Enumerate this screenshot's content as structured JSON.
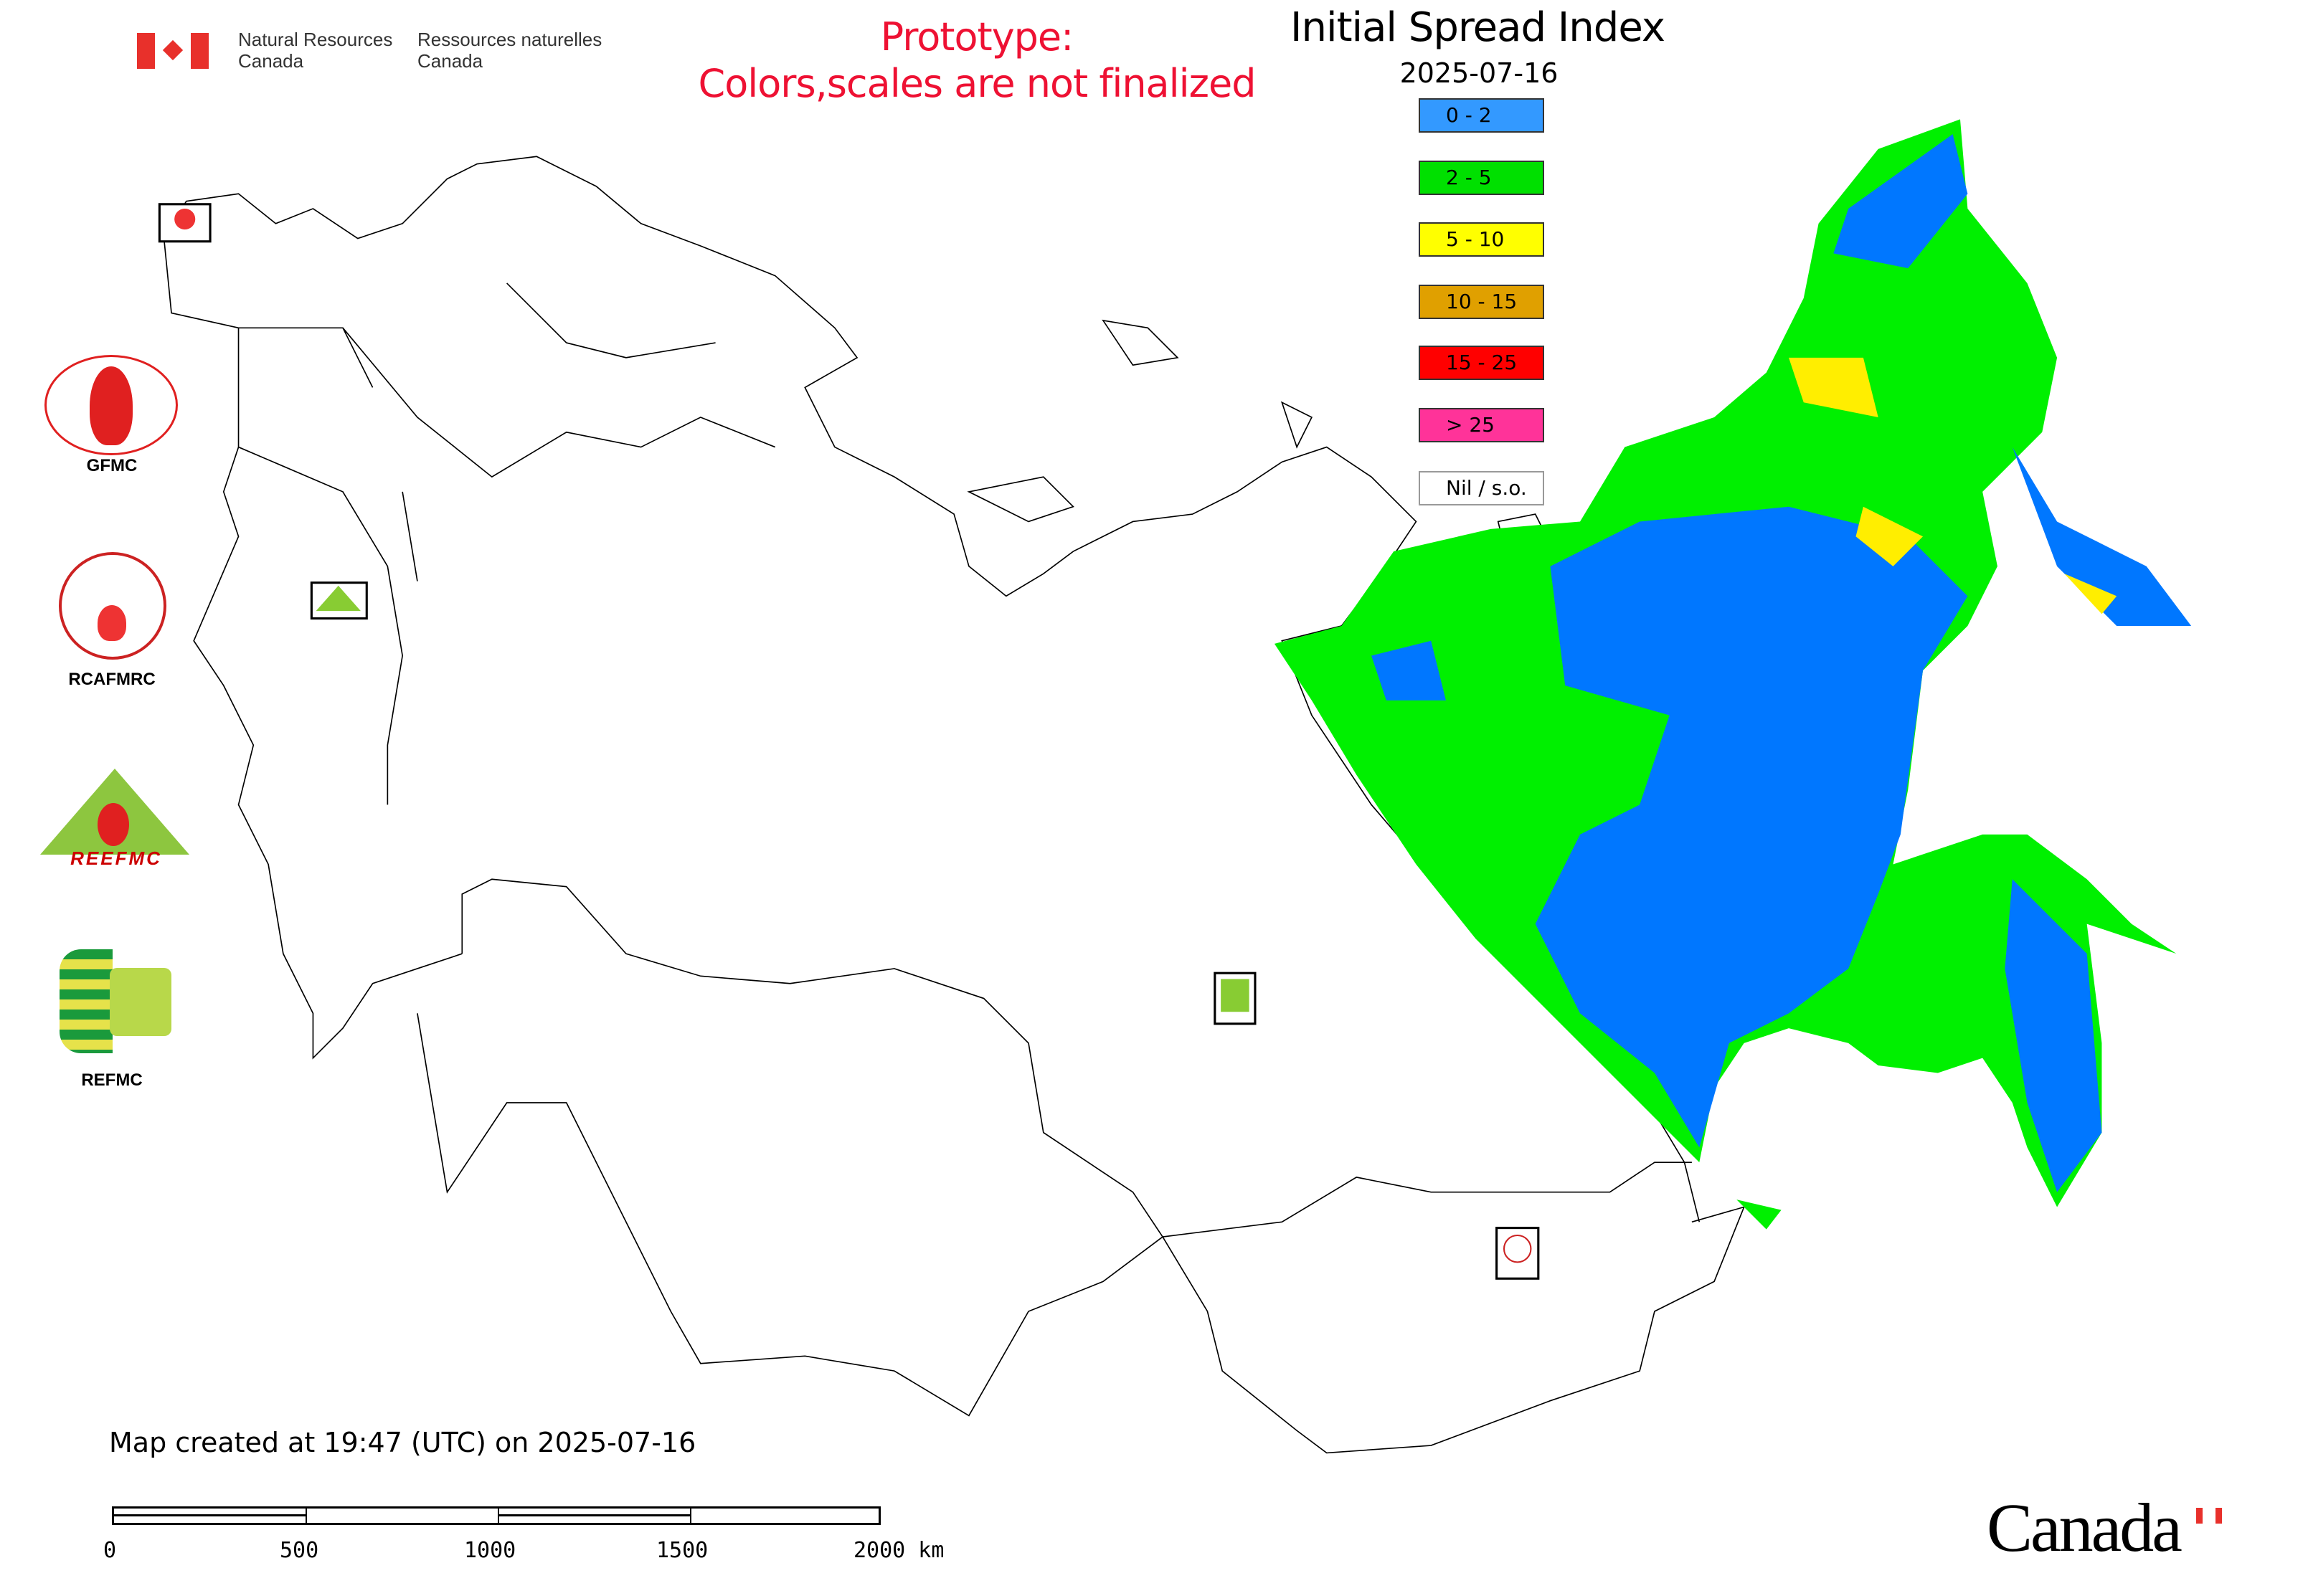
{
  "header": {
    "agency_en": [
      "Natural Resources",
      "Canada"
    ],
    "agency_fr": [
      "Ressources naturelles",
      "Canada"
    ],
    "prototype_line1": "Prototype:",
    "prototype_line2": "Colors,scales are not finalized"
  },
  "legend": {
    "title": "Initial Spread Index",
    "date": "2025-07-16",
    "classes": [
      {
        "label": "0 - 2",
        "color": "#3399ff"
      },
      {
        "label": "2 - 5",
        "color": "#00e000"
      },
      {
        "label": "5 - 10",
        "color": "#ffff00"
      },
      {
        "label": "10 - 15",
        "color": "#e0a000"
      },
      {
        "label": "15 - 25",
        "color": "#ff0000"
      },
      {
        "label": "> 25",
        "color": "#ff3399"
      },
      {
        "label": "Nil / s.o.",
        "color": "#ffffff"
      }
    ]
  },
  "logos": {
    "gfmc": "GFMC",
    "rcafmrc": "RCAFMRC",
    "reefmc": "REEFMC",
    "refmc": "REFMC"
  },
  "footer": {
    "created": "Map created at 19:47 (UTC) on 2025-07-16",
    "scale_ticks": [
      "0",
      "500",
      "1000",
      "1500",
      "2000 km"
    ],
    "wordmark": "Canada"
  },
  "colors": {
    "prototype_text": "#ee1133",
    "flag_red": "#e8302b",
    "map_green": "#00f000",
    "map_blue": "#0077ff",
    "map_yellow": "#ffee00"
  }
}
